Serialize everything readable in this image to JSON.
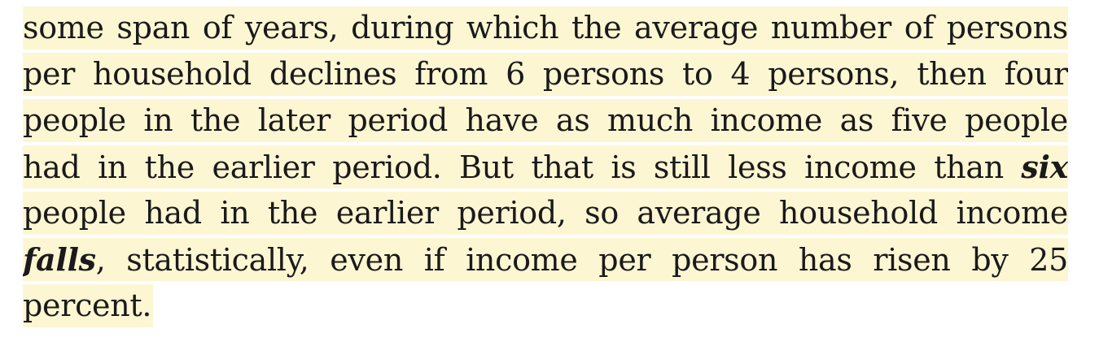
{
  "highlight_color": "#fdf6d3",
  "text_color": "#1a1a1a",
  "passage": {
    "line1": "some span of years, during which the average number of persons",
    "line2": "per household declines from 6 persons to 4 persons, then four",
    "line3": "people in the later period have as much income as five people",
    "line4_a": "had in the earlier period. But that is still less income than ",
    "line4_emph": "six",
    "line5": "people had in the earlier period, so average household income",
    "line6_emph": "falls",
    "line6_b": ", statistically, even if income per person has risen by 25",
    "line7": "percent."
  }
}
